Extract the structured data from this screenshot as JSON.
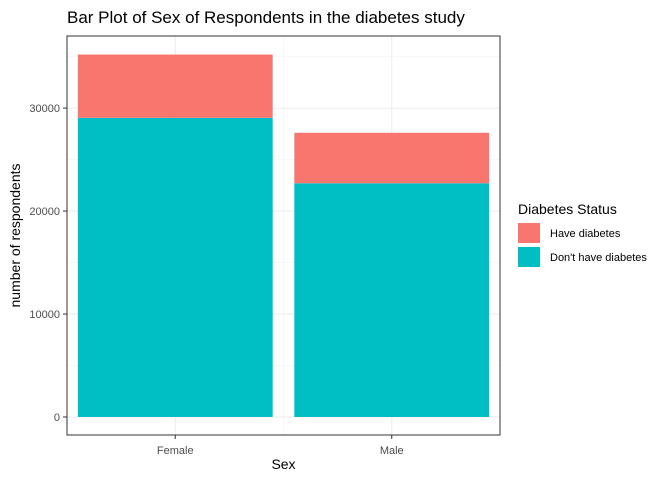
{
  "chart_data": {
    "type": "bar",
    "stacked": true,
    "title": "Bar Plot of Sex of Respondents in the diabetes study",
    "xlabel": "Sex",
    "ylabel": "number of respondents",
    "categories": [
      "Female",
      "Male"
    ],
    "series": [
      {
        "name": "Have diabetes",
        "color": "#F8766D",
        "values": [
          6150,
          4900
        ]
      },
      {
        "name": "Don't have diabetes",
        "color": "#00BFC4",
        "values": [
          29050,
          22700
        ]
      }
    ],
    "ylim": [
      -1750,
      37000
    ],
    "yticks": [
      0,
      10000,
      20000,
      30000
    ],
    "ytick_labels": [
      "0",
      "10000",
      "20000",
      "30000"
    ],
    "grid": true,
    "legend": {
      "title": "Diabetes Status",
      "position": "right",
      "entries": [
        "Have diabetes",
        "Don't have diabetes"
      ]
    }
  }
}
